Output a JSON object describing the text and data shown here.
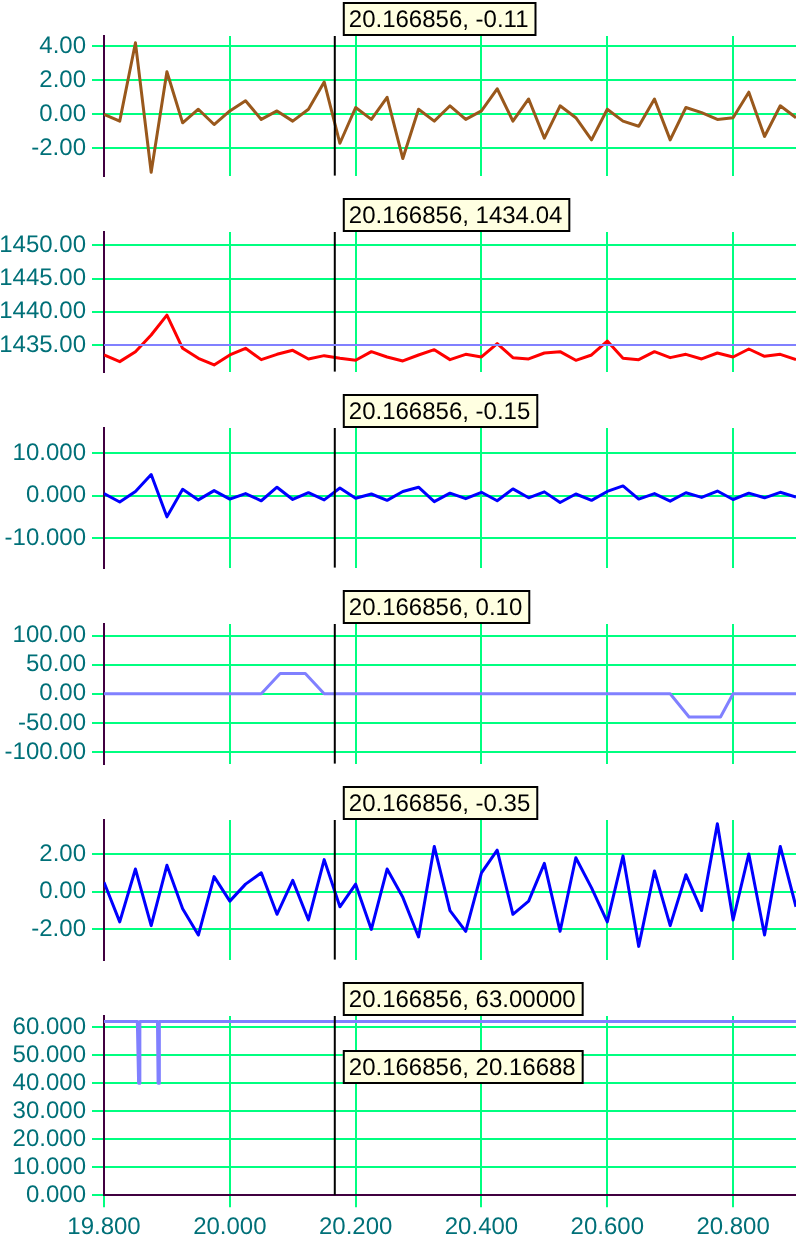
{
  "chart_data": [
    {
      "type": "line",
      "color": "#99581c",
      "tick_labels": "y",
      "grid": true,
      "xlim": [
        19.8,
        20.9
      ],
      "ylim": [
        -3.6,
        4.6
      ],
      "yticks": [
        {
          "value": -2,
          "label": "-2.00"
        },
        {
          "value": 0,
          "label": "0.00"
        },
        {
          "value": 2,
          "label": "2.00"
        },
        {
          "value": 4,
          "label": "4.00"
        }
      ],
      "x": [
        19.8,
        19.825,
        19.85,
        19.875,
        19.9,
        19.925,
        19.95,
        19.975,
        20.0,
        20.025,
        20.05,
        20.075,
        20.1,
        20.125,
        20.15,
        20.175,
        20.2,
        20.225,
        20.25,
        20.275,
        20.3,
        20.325,
        20.35,
        20.375,
        20.4,
        20.425,
        20.45,
        20.475,
        20.5,
        20.525,
        20.55,
        20.575,
        20.6,
        20.625,
        20.65,
        20.675,
        20.7,
        20.725,
        20.75,
        20.775,
        20.8,
        20.825,
        20.85,
        20.875,
        20.9
      ],
      "values": [
        0,
        -0.4,
        4.2,
        -3.4,
        2.5,
        -0.5,
        0.3,
        -0.6,
        0.2,
        0.8,
        -0.3,
        0.2,
        -0.4,
        0.3,
        1.9,
        -1.7,
        0.4,
        -0.3,
        1.0,
        -2.6,
        0.3,
        -0.4,
        0.5,
        -0.3,
        0.2,
        1.5,
        -0.4,
        0.9,
        -1.4,
        0.5,
        -0.2,
        -1.5,
        0.3,
        -0.4,
        -0.7,
        0.9,
        -1.5,
        0.4,
        0.1,
        -0.3,
        -0.2,
        1.3,
        -1.3,
        0.5,
        -0.2
      ],
      "ref_lines": [
        {
          "axis": "x",
          "value": 20.166856,
          "color": "#000000"
        }
      ],
      "annotations": [
        "20.166856, -0.11"
      ]
    },
    {
      "type": "line",
      "color": "#ff0000",
      "tick_labels": "y",
      "grid": true,
      "xlim": [
        19.8,
        20.9
      ],
      "ylim": [
        1431,
        1452
      ],
      "yticks": [
        {
          "value": 1435,
          "label": "1435.00"
        },
        {
          "value": 1440,
          "label": "1440.00"
        },
        {
          "value": 1445,
          "label": "1445.00"
        },
        {
          "value": 1450,
          "label": "1450.00"
        }
      ],
      "x": [
        19.8,
        19.825,
        19.85,
        19.875,
        19.9,
        19.925,
        19.95,
        19.975,
        20.0,
        20.025,
        20.05,
        20.075,
        20.1,
        20.125,
        20.15,
        20.175,
        20.2,
        20.225,
        20.25,
        20.275,
        20.3,
        20.325,
        20.35,
        20.375,
        20.4,
        20.425,
        20.45,
        20.475,
        20.5,
        20.525,
        20.55,
        20.575,
        20.6,
        20.625,
        20.65,
        20.675,
        20.7,
        20.725,
        20.75,
        20.775,
        20.8,
        20.825,
        20.85,
        20.875,
        20.9
      ],
      "values": [
        1433.5,
        1432.5,
        1434,
        1436.5,
        1439.5,
        1434.5,
        1433,
        1432,
        1433.5,
        1434.5,
        1432.8,
        1433.6,
        1434.2,
        1432.9,
        1433.4,
        1433,
        1432.7,
        1434,
        1433.2,
        1432.6,
        1433.5,
        1434.3,
        1432.8,
        1433.6,
        1433.2,
        1435.2,
        1433.1,
        1432.9,
        1433.8,
        1434,
        1432.7,
        1433.5,
        1435.6,
        1433,
        1432.8,
        1434,
        1433.1,
        1433.6,
        1432.9,
        1433.8,
        1433.2,
        1434.4,
        1433.3,
        1433.6,
        1432.8
      ],
      "ref_lines": [
        {
          "axis": "x",
          "value": 20.166856,
          "color": "#000000"
        },
        {
          "axis": "y",
          "value": 1435,
          "color": "#8080ff"
        }
      ],
      "annotations": [
        "20.166856, 1434.04"
      ]
    },
    {
      "type": "line",
      "color": "#0000ff",
      "tick_labels": "y",
      "grid": true,
      "xlim": [
        19.8,
        20.9
      ],
      "ylim": [
        -17,
        16
      ],
      "yticks": [
        {
          "value": -10,
          "label": "-10.000"
        },
        {
          "value": 0,
          "label": "0.000"
        },
        {
          "value": 10,
          "label": "10.000"
        }
      ],
      "x": [
        19.8,
        19.825,
        19.85,
        19.875,
        19.9,
        19.925,
        19.95,
        19.975,
        20.0,
        20.025,
        20.05,
        20.075,
        20.1,
        20.125,
        20.15,
        20.175,
        20.2,
        20.225,
        20.25,
        20.275,
        20.3,
        20.325,
        20.35,
        20.375,
        20.4,
        20.425,
        20.45,
        20.475,
        20.5,
        20.525,
        20.55,
        20.575,
        20.6,
        20.625,
        20.65,
        20.675,
        20.7,
        20.725,
        20.75,
        20.775,
        20.8,
        20.825,
        20.85,
        20.875,
        20.9
      ],
      "values": [
        0.5,
        -1.5,
        1,
        5,
        -5,
        1.5,
        -1,
        1.2,
        -0.8,
        0.5,
        -1.2,
        2,
        -0.9,
        0.7,
        -1,
        1.8,
        -0.6,
        0.4,
        -1.1,
        1,
        2,
        -1.4,
        0.6,
        -0.7,
        0.8,
        -1.2,
        1.6,
        -0.5,
        0.9,
        -1.6,
        0.4,
        -1.1,
        1,
        2.3,
        -0.8,
        0.5,
        -1.3,
        0.7,
        -0.4,
        1.1,
        -0.9,
        0.6,
        -0.5,
        0.8,
        -0.3
      ],
      "ref_lines": [
        {
          "axis": "x",
          "value": 20.166856,
          "color": "#000000"
        }
      ],
      "annotations": [
        "20.166856, -0.15"
      ]
    },
    {
      "type": "line",
      "color": "#8080ff",
      "tick_labels": "y",
      "grid": true,
      "xlim": [
        19.8,
        20.9
      ],
      "ylim": [
        -120,
        120
      ],
      "yticks": [
        {
          "value": -100,
          "label": "-100.00"
        },
        {
          "value": -50,
          "label": "-50.00"
        },
        {
          "value": 0,
          "label": "0.00"
        },
        {
          "value": 50,
          "label": "50.00"
        },
        {
          "value": 100,
          "label": "100.00"
        }
      ],
      "x": [
        19.8,
        20.05,
        20.08,
        20.12,
        20.15,
        20.7,
        20.73,
        20.78,
        20.8,
        20.9
      ],
      "values": [
        0,
        0,
        35,
        35,
        0,
        0,
        -40,
        -40,
        0,
        0
      ],
      "ref_lines": [
        {
          "axis": "x",
          "value": 20.166856,
          "color": "#000000"
        }
      ],
      "annotations": [
        "20.166856, 0.10"
      ]
    },
    {
      "type": "line",
      "color": "#0000ff",
      "tick_labels": "y",
      "grid": true,
      "xlim": [
        19.8,
        20.9
      ],
      "ylim": [
        -3.6,
        3.8
      ],
      "yticks": [
        {
          "value": -2,
          "label": "-2.00"
        },
        {
          "value": 0,
          "label": "0.00"
        },
        {
          "value": 2,
          "label": "2.00"
        }
      ],
      "x": [
        19.8,
        19.825,
        19.85,
        19.875,
        19.9,
        19.925,
        19.95,
        19.975,
        20.0,
        20.025,
        20.05,
        20.075,
        20.1,
        20.125,
        20.15,
        20.175,
        20.2,
        20.225,
        20.25,
        20.275,
        20.3,
        20.325,
        20.35,
        20.375,
        20.4,
        20.425,
        20.45,
        20.475,
        20.5,
        20.525,
        20.55,
        20.575,
        20.6,
        20.625,
        20.65,
        20.675,
        20.7,
        20.725,
        20.75,
        20.775,
        20.8,
        20.825,
        20.85,
        20.875,
        20.9
      ],
      "values": [
        0.5,
        -1.6,
        1.2,
        -1.8,
        1.4,
        -0.9,
        -2.3,
        0.8,
        -0.5,
        0.4,
        1.0,
        -1.2,
        0.6,
        -1.5,
        1.7,
        -0.8,
        0.4,
        -2.0,
        1.2,
        -0.3,
        -2.4,
        2.4,
        -1.0,
        -2.1,
        1.0,
        2.2,
        -1.2,
        -0.5,
        1.5,
        -2.1,
        1.8,
        0.2,
        -1.6,
        1.9,
        -2.9,
        1.1,
        -1.8,
        0.9,
        -1.0,
        3.6,
        -1.5,
        2.0,
        -2.3,
        2.4,
        -0.8
      ],
      "ref_lines": [
        {
          "axis": "x",
          "value": 20.166856,
          "color": "#000000"
        }
      ],
      "annotations": [
        "20.166856, -0.35"
      ]
    },
    {
      "type": "line",
      "color": "#8080ff",
      "grid": true,
      "xlim": [
        19.8,
        20.9
      ],
      "xticks": [
        {
          "value": 19.8,
          "label": "19.800"
        },
        {
          "value": 20,
          "label": "20.000"
        },
        {
          "value": 20.2,
          "label": "20.200"
        },
        {
          "value": 20.4,
          "label": "20.400"
        },
        {
          "value": 20.6,
          "label": "20.600"
        },
        {
          "value": 20.8,
          "label": "20.800"
        }
      ],
      "ylim": [
        0,
        64
      ],
      "yticks": [
        {
          "value": 0,
          "label": "0.000"
        },
        {
          "value": 10,
          "label": "10.000"
        },
        {
          "value": 20,
          "label": "20.000"
        },
        {
          "value": 30,
          "label": "30.000"
        },
        {
          "value": 40,
          "label": "40.000"
        },
        {
          "value": 50,
          "label": "50.000"
        },
        {
          "value": 60,
          "label": "60.000"
        }
      ],
      "x": [
        19.8,
        19.853,
        19.855,
        19.857,
        19.885,
        19.886,
        19.888,
        20.9
      ],
      "values": [
        62,
        62,
        40,
        62,
        62,
        40,
        62,
        62
      ],
      "ref_lines": [
        {
          "axis": "x",
          "value": 20.166856,
          "color": "#000000"
        }
      ],
      "annotations": [
        "20.166856, 63.00000",
        "20.166856, 20.16688"
      ]
    }
  ]
}
